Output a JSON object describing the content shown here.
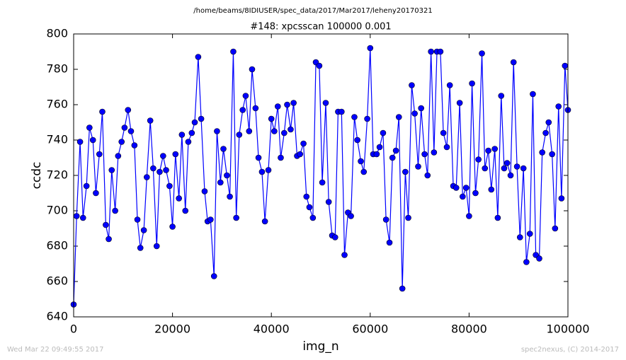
{
  "chart_data": {
    "type": "line",
    "suptitle": "/home/beams/8IDIUSER/spec_data/2017/Mar2017/leheny20170321",
    "title": "#148: xpcsscan 100000 0.001",
    "xlabel": "img_n",
    "ylabel": "ccdc",
    "footer_left": "Wed Mar 22 09:49:55 2017",
    "footer_right": "spec2nexus, (C) 2014-2017",
    "xlim": [
      0,
      100000
    ],
    "xticks": [
      0,
      20000,
      40000,
      60000,
      80000,
      100000
    ],
    "ylim": [
      640,
      800
    ],
    "yticks": [
      640,
      660,
      680,
      700,
      720,
      740,
      760,
      780,
      800
    ],
    "grid": false,
    "x": [
      0,
      600,
      1300,
      1900,
      2600,
      3200,
      3900,
      4500,
      5200,
      5800,
      6500,
      7100,
      7700,
      8400,
      9000,
      9700,
      10300,
      11000,
      11600,
      12300,
      12900,
      13500,
      14200,
      14800,
      15500,
      16100,
      16800,
      17400,
      18100,
      18700,
      19400,
      20000,
      20600,
      21300,
      21900,
      22600,
      23200,
      23900,
      24500,
      25200,
      25800,
      26500,
      27100,
      27700,
      28400,
      29000,
      29700,
      30300,
      31000,
      31600,
      32300,
      32900,
      33500,
      34200,
      34800,
      35500,
      36100,
      36800,
      37400,
      38100,
      38700,
      39400,
      40000,
      40600,
      41300,
      41900,
      42600,
      43200,
      43900,
      44500,
      45200,
      45800,
      46500,
      47100,
      47700,
      48400,
      49000,
      49700,
      50300,
      51000,
      51600,
      52300,
      52900,
      53500,
      54200,
      54800,
      55500,
      56100,
      56800,
      57400,
      58100,
      58700,
      59400,
      60000,
      60600,
      61300,
      61900,
      62600,
      63200,
      63900,
      64500,
      65200,
      65800,
      66500,
      67100,
      67700,
      68400,
      69000,
      69700,
      70300,
      71000,
      71600,
      72300,
      72900,
      73500,
      74200,
      74800,
      75500,
      76100,
      76800,
      77400,
      78100,
      78700,
      79400,
      80000,
      80600,
      81300,
      81900,
      82600,
      83200,
      83900,
      84500,
      85200,
      85800,
      86500,
      87100,
      87700,
      88400,
      89000,
      89700,
      90300,
      91000,
      91600,
      92300,
      92900,
      93500,
      94200,
      94800,
      95500,
      96100,
      96800,
      97400,
      98100,
      98700,
      99400,
      100000
    ],
    "series": [
      {
        "color": "#0000ff",
        "values": [
          647,
          697,
          739,
          696,
          714,
          747,
          740,
          710,
          732,
          756,
          692,
          684,
          723,
          700,
          731,
          739,
          747,
          757,
          745,
          737,
          695,
          679,
          689,
          719,
          751,
          724,
          680,
          722,
          731,
          723,
          714,
          691,
          732,
          707,
          743,
          700,
          739,
          744,
          750,
          787,
          752,
          711,
          694,
          695,
          663,
          745,
          716,
          735,
          720,
          708,
          790,
          696,
          743,
          757,
          765,
          745,
          780,
          758,
          730,
          722,
          694,
          723,
          752,
          745,
          759,
          730,
          744,
          760,
          746,
          761,
          731,
          732,
          738,
          708,
          702,
          696,
          784,
          782,
          716,
          761,
          705,
          686,
          685,
          756,
          756,
          675,
          699,
          697,
          753,
          740,
          728,
          722,
          752,
          792,
          732,
          732,
          736,
          744,
          695,
          682,
          730,
          734,
          753,
          656,
          722,
          696,
          771,
          755,
          725,
          758,
          732,
          720,
          790,
          733,
          790,
          790,
          744,
          736,
          771,
          714,
          713,
          761,
          708,
          713,
          697,
          772,
          710,
          729,
          789,
          724,
          734,
          712,
          735,
          696,
          765,
          724,
          727,
          720,
          784,
          725,
          685,
          724,
          671,
          687,
          766,
          675,
          673,
          733,
          744,
          750,
          732,
          690,
          759,
          707,
          782,
          757
        ]
      }
    ]
  }
}
